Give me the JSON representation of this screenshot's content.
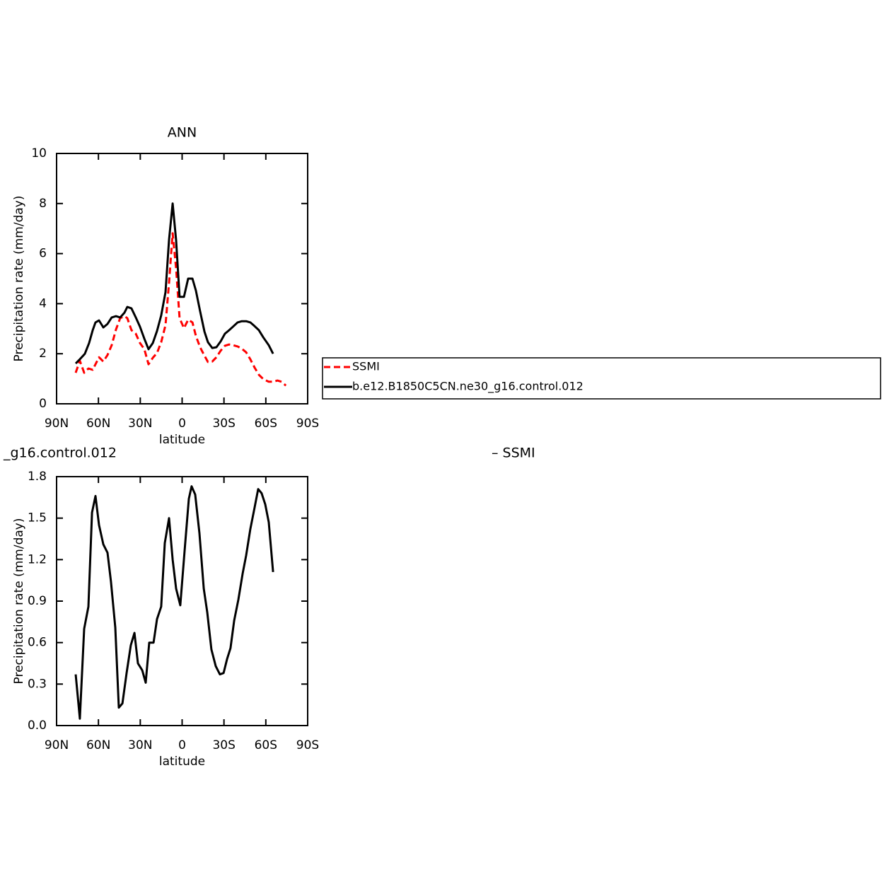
{
  "chart_data": [
    {
      "type": "line",
      "title": "ANN",
      "xlabel": "latitude",
      "ylabel": "Precipitation rate (mm/day)",
      "xlim": [
        90,
        -90
      ],
      "xticks": [
        {
          "value": 90,
          "label": "90N"
        },
        {
          "value": 60,
          "label": "60N"
        },
        {
          "value": 30,
          "label": "30N"
        },
        0,
        {
          "value": -30,
          "label": "30S"
        },
        {
          "value": -60,
          "label": "60S"
        },
        {
          "value": -90,
          "label": "90S"
        }
      ],
      "ylim": [
        0,
        10
      ],
      "yticks": [
        0,
        2,
        4,
        6,
        8,
        10
      ],
      "legend": "outside-right",
      "series": [
        {
          "name": "SSMI",
          "color": "#ff0000",
          "line_style": "dashed",
          "x": [
            76.3,
            73.3,
            70.2,
            67.2,
            64.1,
            59.6,
            56.5,
            53.5,
            50.5,
            47.4,
            44.4,
            41.3,
            39.3,
            36.3,
            33.2,
            30.2,
            27.1,
            24.1,
            21.0,
            18.0,
            15.0,
            11.9,
            9.4,
            6.8,
            4.3,
            1.8,
            -1.3,
            -4.3,
            -7.4,
            -9.9,
            -12.9,
            -16.0,
            -18.5,
            -21.6,
            -24.6,
            -27.6,
            -30.7,
            -33.7,
            -36.8,
            -39.8,
            -42.8,
            -45.9,
            -48.9,
            -52.0,
            -55.0,
            -58.1,
            -62.1,
            -65.2,
            -68.3,
            -71.3,
            -74.4
          ],
          "values": [
            1.24,
            1.72,
            1.24,
            1.41,
            1.36,
            1.86,
            1.69,
            1.95,
            2.34,
            2.97,
            3.42,
            3.5,
            3.42,
            2.94,
            2.8,
            2.43,
            2.18,
            1.58,
            1.84,
            2.03,
            2.46,
            3.14,
            4.83,
            6.81,
            5.4,
            3.42,
            3.02,
            3.36,
            3.25,
            2.71,
            2.26,
            1.92,
            1.67,
            1.69,
            1.86,
            2.12,
            2.32,
            2.37,
            2.34,
            2.29,
            2.2,
            2.06,
            1.78,
            1.44,
            1.16,
            0.99,
            0.88,
            0.88,
            0.93,
            0.88,
            0.73
          ]
        },
        {
          "name": "b.e12.B1850C5CN.ne30_g16.control.012",
          "color": "#000000",
          "line_style": "solid",
          "x": [
            76.3,
            73.3,
            69.7,
            66.7,
            64.1,
            62.1,
            59.6,
            56.5,
            53.5,
            50.5,
            47.4,
            44.4,
            41.3,
            39.3,
            36.3,
            33.2,
            30.2,
            27.1,
            24.1,
            21.0,
            18.0,
            15.0,
            11.9,
            9.4,
            6.8,
            4.3,
            1.8,
            -1.3,
            -4.3,
            -7.4,
            -9.9,
            -12.9,
            -16.0,
            -18.5,
            -21.6,
            -24.6,
            -27.6,
            -30.7,
            -33.7,
            -36.8,
            -39.8,
            -42.8,
            -45.9,
            -48.9,
            -52.0,
            -55.0,
            -58.1,
            -62.1,
            -65.2
          ],
          "values": [
            1.61,
            1.78,
            2.0,
            2.43,
            2.94,
            3.25,
            3.33,
            3.05,
            3.19,
            3.45,
            3.5,
            3.45,
            3.64,
            3.87,
            3.81,
            3.45,
            3.08,
            2.6,
            2.18,
            2.43,
            2.91,
            3.53,
            4.46,
            6.55,
            8.0,
            6.53,
            4.27,
            4.27,
            5.0,
            5.0,
            4.52,
            3.7,
            2.88,
            2.46,
            2.23,
            2.26,
            2.49,
            2.8,
            2.94,
            3.1,
            3.25,
            3.3,
            3.3,
            3.25,
            3.1,
            2.94,
            2.66,
            2.34,
            2.0
          ]
        }
      ]
    },
    {
      "type": "line",
      "title_left": "_g16.control.012",
      "title_right": "– SSMI",
      "xlabel": "latitude",
      "ylabel": "Precipitation rate (mm/day)",
      "xlim": [
        90,
        -90
      ],
      "xticks": [
        {
          "value": 90,
          "label": "90N"
        },
        {
          "value": 60,
          "label": "60N"
        },
        {
          "value": 30,
          "label": "30N"
        },
        0,
        {
          "value": -30,
          "label": "30S"
        },
        {
          "value": -60,
          "label": "60S"
        },
        {
          "value": -90,
          "label": "90S"
        }
      ],
      "ylim": [
        0,
        1.8
      ],
      "yticks": [
        {
          "value": 0,
          "label": "0.0"
        },
        0.3,
        0.6,
        0.9,
        1.2,
        1.5,
        1.8
      ],
      "series": [
        {
          "color": "#000000",
          "line_style": "solid",
          "x": [
            76.3,
            73.3,
            70.2,
            67.2,
            64.6,
            62.1,
            59.6,
            56.5,
            53.5,
            51.0,
            47.9,
            45.4,
            42.8,
            39.8,
            36.8,
            34.2,
            31.7,
            28.6,
            26.1,
            23.6,
            20.5,
            18.0,
            15.0,
            12.4,
            9.4,
            6.8,
            4.3,
            1.3,
            -1.8,
            -4.8,
            -6.8,
            -9.4,
            -12.4,
            -15.5,
            -18.0,
            -21.0,
            -24.1,
            -27.1,
            -29.7,
            -32.2,
            -34.7,
            -37.3,
            -40.3,
            -43.4,
            -45.9,
            -48.9,
            -52.0,
            -54.5,
            -57.0,
            -59.6,
            -62.1,
            -65.2
          ],
          "values": [
            0.37,
            0.05,
            0.7,
            0.86,
            1.54,
            1.66,
            1.45,
            1.31,
            1.25,
            1.04,
            0.71,
            0.13,
            0.16,
            0.38,
            0.58,
            0.67,
            0.45,
            0.4,
            0.31,
            0.6,
            0.6,
            0.77,
            0.86,
            1.32,
            1.5,
            1.2,
            0.99,
            0.87,
            1.27,
            1.64,
            1.73,
            1.67,
            1.39,
            0.99,
            0.82,
            0.55,
            0.43,
            0.37,
            0.38,
            0.48,
            0.56,
            0.76,
            0.91,
            1.1,
            1.23,
            1.42,
            1.58,
            1.71,
            1.68,
            1.6,
            1.47,
            1.11
          ]
        }
      ]
    }
  ]
}
